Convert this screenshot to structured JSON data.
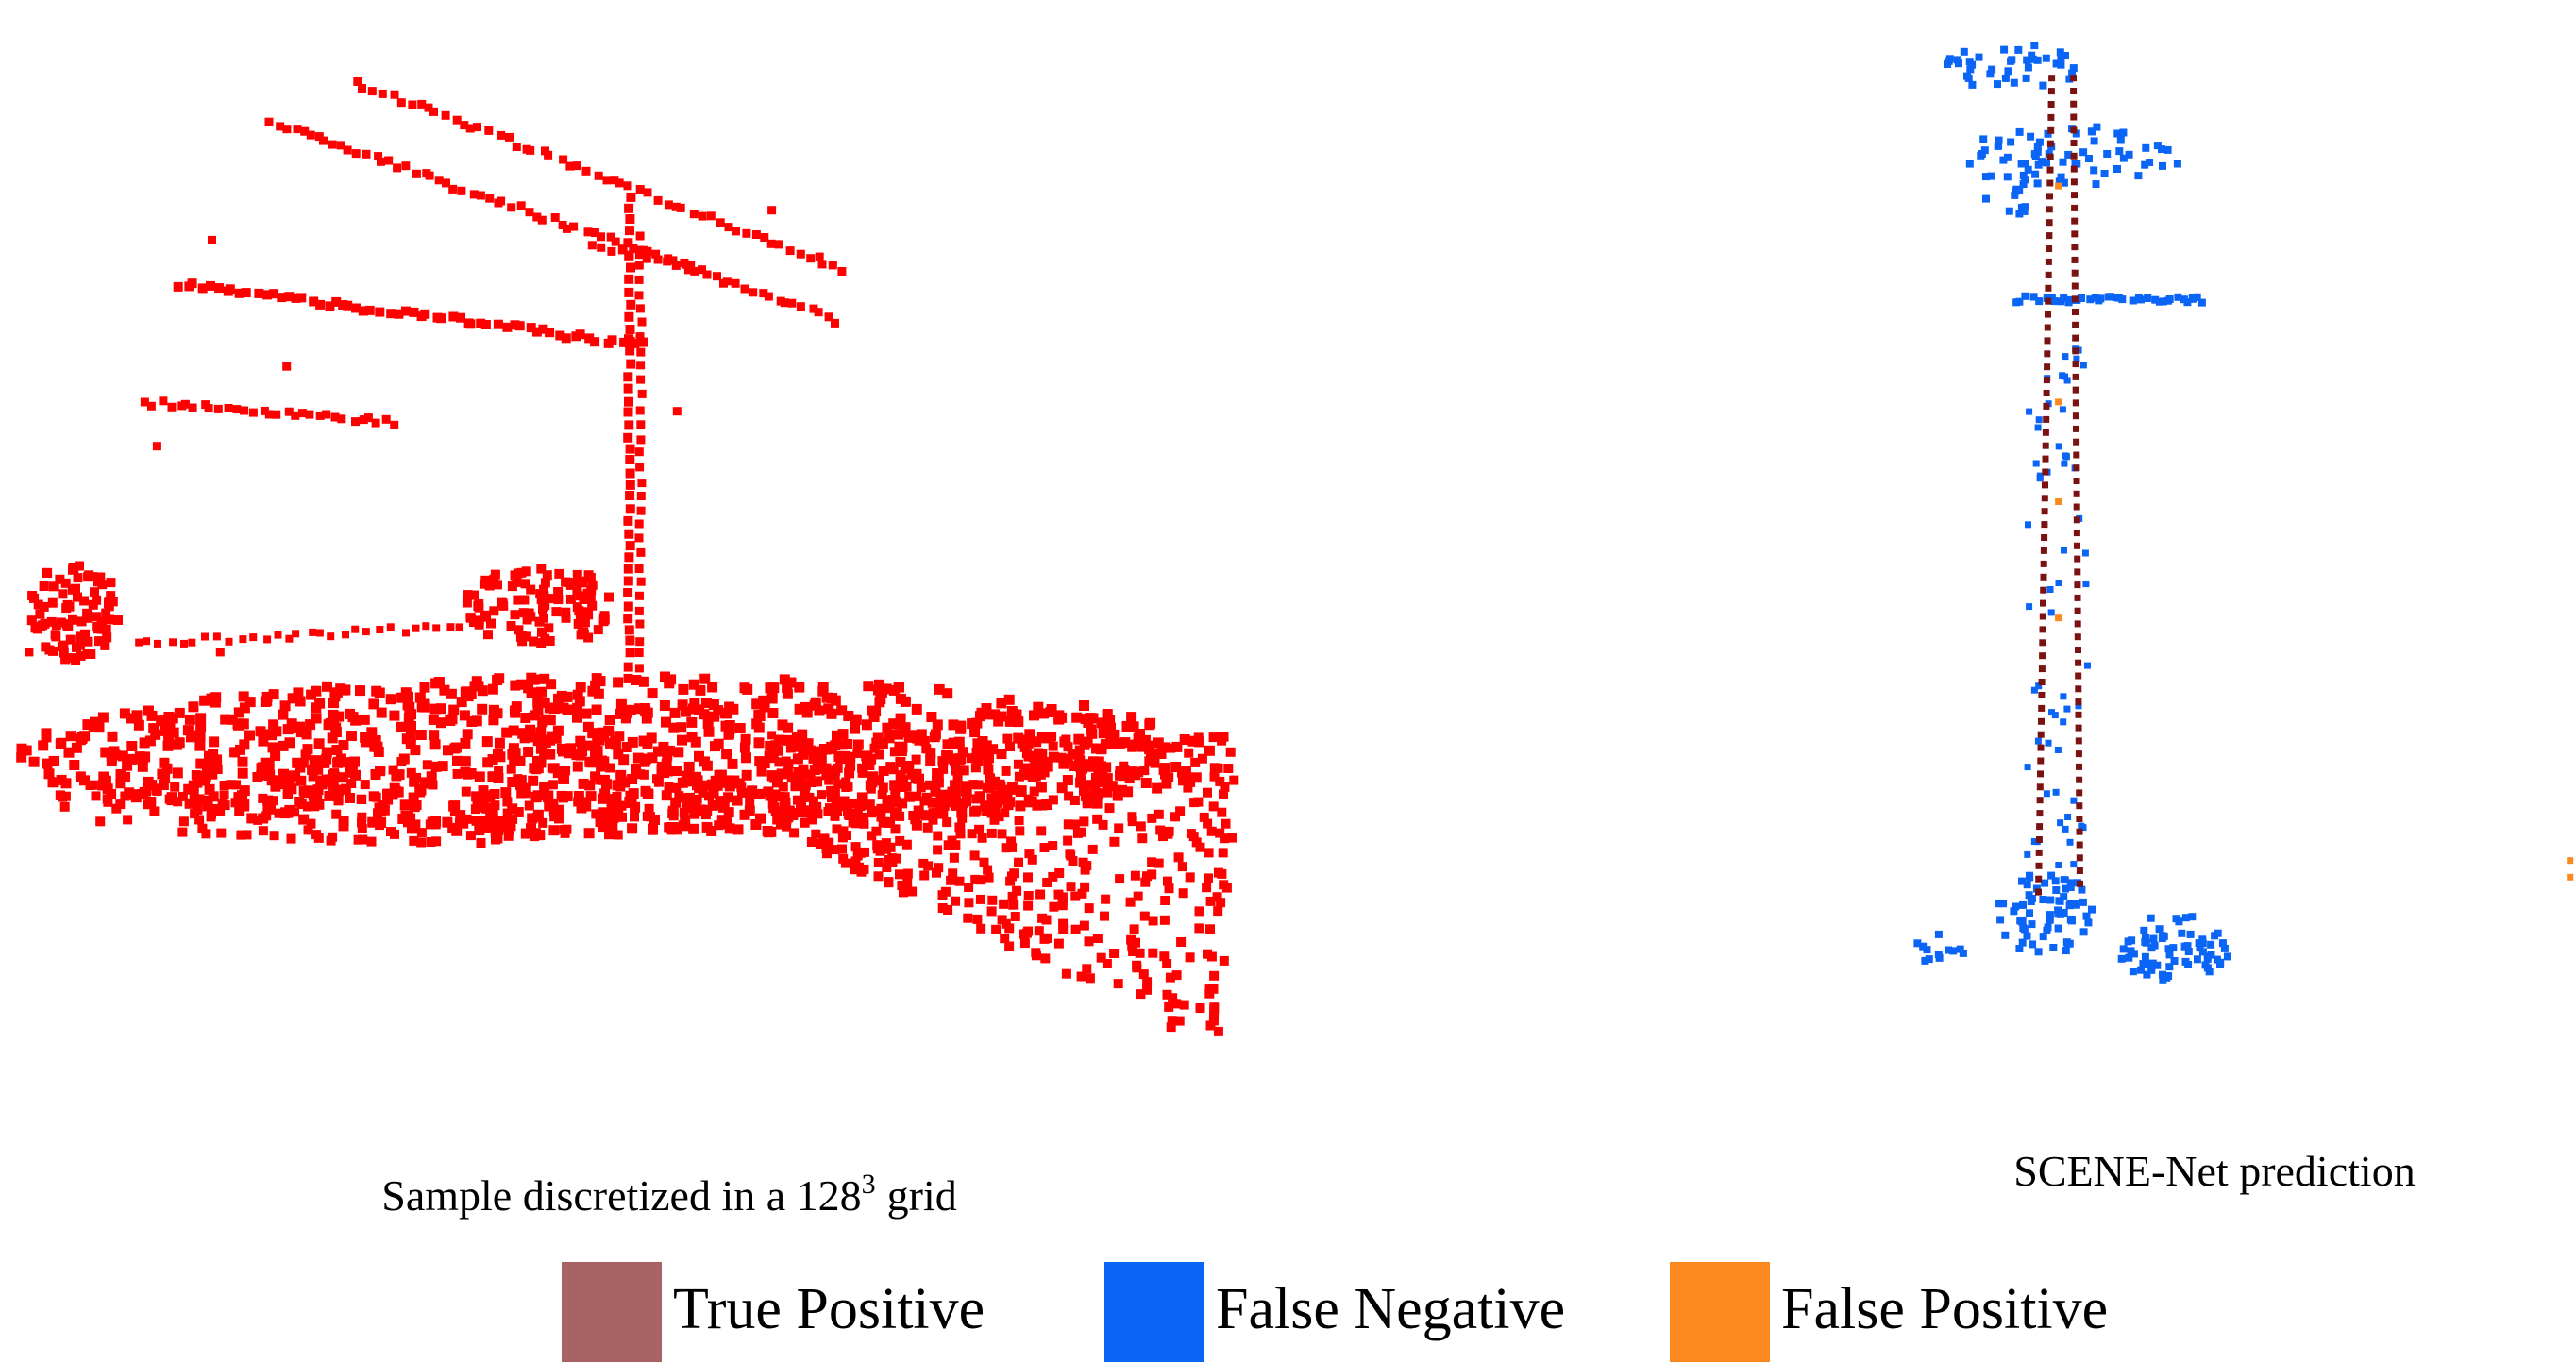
{
  "figure": {
    "left_caption": {
      "text": "Sample discretized in a 128",
      "superscript": "3",
      "suffix": "grid"
    },
    "right_caption": "SCENE-Net prediction",
    "legend": [
      {
        "label": "True Positive",
        "color": "#a86464"
      },
      {
        "label": "False Negative",
        "color": "#0a64f5"
      },
      {
        "label": "False Positive",
        "color": "#fb8a1e"
      }
    ]
  }
}
